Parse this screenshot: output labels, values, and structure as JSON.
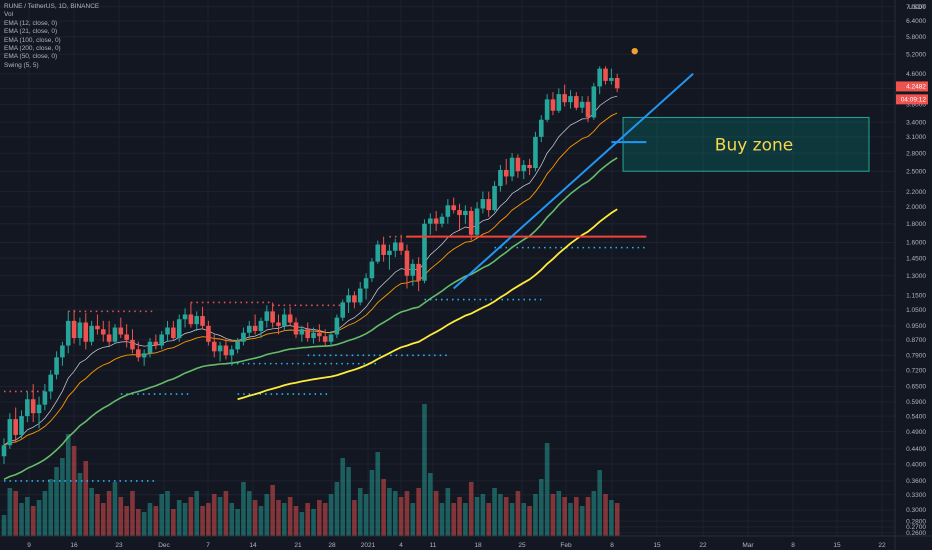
{
  "header": {
    "symbol_line": "RUNE / TetherUS, 1D, BINANCE",
    "indicators": [
      "Vol",
      "EMA (12, close, 0)",
      "EMA (21, close, 0)",
      "EMA (100, close, 0)",
      "EMA (200, close, 0)",
      "EMA (50, close, 0)",
      "Swing (5, 5)"
    ]
  },
  "colors": {
    "background": "#131722",
    "bull": "#26a69a",
    "bear": "#ef5350",
    "ema_fast": "#d1d4dc",
    "ema_mid": "#ff9800",
    "ema_slow": "#66bb6a",
    "ema_long": "#ffeb3b",
    "trend": "#2196f3",
    "zone_fill": "rgba(0,150,136,0.25)",
    "zone_border": "#26a69a",
    "zone_text": "#f6d64a",
    "swing_high": "#ef5350",
    "swing_low": "#29b6f6"
  },
  "chart_data": {
    "type": "candlestick",
    "scale": "log",
    "y_axis_label_top": "USDT",
    "y_ticks": [
      0.26,
      0.27,
      0.28,
      0.3,
      0.33,
      0.36,
      0.4,
      0.44,
      0.49,
      0.54,
      0.59,
      0.65,
      0.72,
      0.79,
      0.87,
      0.95,
      1.05,
      1.15,
      1.3,
      1.45,
      1.6,
      1.8,
      2.0,
      2.2,
      2.5,
      2.8,
      3.1,
      3.4,
      3.8,
      4.2,
      4.6,
      5.2,
      5.8,
      6.4,
      7.0
    ],
    "y_tick_labels": [
      "0.2600",
      "0.2700",
      "0.2800",
      "0.3000",
      "0.3300",
      "0.3600",
      "0.4000",
      "0.4400",
      "0.4900",
      "0.5400",
      "0.5900",
      "0.6500",
      "0.7200",
      "0.7900",
      "0.8700",
      "0.9500",
      "1.0500",
      "1.1500",
      "1.3000",
      "1.4500",
      "1.6000",
      "1.8000",
      "2.0000",
      "2.2000",
      "2.5000",
      "2.8000",
      "3.1000",
      "3.4000",
      "3.8000",
      "4.2000",
      "4.6000",
      "5.2000",
      "5.8000",
      "6.4000",
      "7.0000"
    ],
    "x_ticks": [
      "9",
      "16",
      "23",
      "Dec",
      "7",
      "14",
      "21",
      "28",
      "2021",
      "4",
      "11",
      "18",
      "25",
      "Feb",
      "8",
      "15",
      "22",
      "Mar",
      "8",
      "15",
      "22"
    ],
    "ohlc": [
      [
        0.42,
        0.47,
        0.4,
        0.45
      ],
      [
        0.45,
        0.55,
        0.44,
        0.53
      ],
      [
        0.53,
        0.57,
        0.46,
        0.48
      ],
      [
        0.48,
        0.56,
        0.47,
        0.54
      ],
      [
        0.54,
        0.63,
        0.52,
        0.6
      ],
      [
        0.6,
        0.66,
        0.52,
        0.55
      ],
      [
        0.55,
        0.61,
        0.5,
        0.58
      ],
      [
        0.58,
        0.66,
        0.56,
        0.63
      ],
      [
        0.63,
        0.72,
        0.6,
        0.7
      ],
      [
        0.7,
        0.81,
        0.68,
        0.78
      ],
      [
        0.78,
        0.86,
        0.74,
        0.84
      ],
      [
        0.84,
        1.04,
        0.8,
        0.98
      ],
      [
        0.98,
        1.05,
        0.85,
        0.88
      ],
      [
        0.88,
        1.0,
        0.84,
        0.97
      ],
      [
        0.97,
        1.03,
        0.82,
        0.86
      ],
      [
        0.86,
        0.98,
        0.84,
        0.95
      ],
      [
        0.95,
        1.02,
        0.9,
        0.93
      ],
      [
        0.93,
        0.98,
        0.86,
        0.9
      ],
      [
        0.9,
        0.98,
        0.84,
        0.86
      ],
      [
        0.86,
        0.96,
        0.85,
        0.94
      ],
      [
        0.94,
        1.0,
        0.88,
        0.9
      ],
      [
        0.9,
        0.96,
        0.83,
        0.87
      ],
      [
        0.87,
        0.93,
        0.8,
        0.82
      ],
      [
        0.82,
        0.86,
        0.76,
        0.78
      ],
      [
        0.78,
        0.82,
        0.74,
        0.8
      ],
      [
        0.8,
        0.88,
        0.78,
        0.86
      ],
      [
        0.86,
        0.9,
        0.82,
        0.84
      ],
      [
        0.84,
        0.92,
        0.82,
        0.9
      ],
      [
        0.9,
        0.98,
        0.86,
        0.94
      ],
      [
        0.94,
        0.98,
        0.87,
        0.88
      ],
      [
        0.88,
        1.02,
        0.86,
        0.99
      ],
      [
        0.99,
        1.06,
        0.94,
        1.02
      ],
      [
        1.02,
        1.1,
        0.94,
        0.96
      ],
      [
        0.96,
        1.04,
        0.92,
        1.01
      ],
      [
        1.01,
        1.07,
        0.93,
        0.95
      ],
      [
        0.95,
        0.98,
        0.84,
        0.86
      ],
      [
        0.86,
        0.9,
        0.78,
        0.81
      ],
      [
        0.81,
        0.86,
        0.76,
        0.84
      ],
      [
        0.84,
        0.88,
        0.77,
        0.79
      ],
      [
        0.79,
        0.84,
        0.74,
        0.82
      ],
      [
        0.82,
        0.88,
        0.8,
        0.86
      ],
      [
        0.86,
        0.94,
        0.84,
        0.91
      ],
      [
        0.91,
        0.98,
        0.88,
        0.95
      ],
      [
        0.95,
        1.02,
        0.9,
        0.92
      ],
      [
        0.92,
        1.0,
        0.88,
        0.98
      ],
      [
        0.98,
        1.08,
        0.94,
        1.04
      ],
      [
        1.04,
        1.1,
        0.94,
        0.97
      ],
      [
        0.97,
        1.02,
        0.9,
        0.95
      ],
      [
        0.95,
        1.06,
        0.92,
        1.02
      ],
      [
        1.02,
        1.07,
        0.95,
        0.97
      ],
      [
        0.97,
        1.0,
        0.88,
        0.9
      ],
      [
        0.9,
        0.95,
        0.86,
        0.93
      ],
      [
        0.93,
        0.97,
        0.86,
        0.88
      ],
      [
        0.88,
        0.94,
        0.85,
        0.91
      ],
      [
        0.91,
        0.96,
        0.86,
        0.89
      ],
      [
        0.89,
        0.93,
        0.84,
        0.86
      ],
      [
        0.86,
        0.92,
        0.84,
        0.9
      ],
      [
        0.9,
        1.02,
        0.88,
        1.0
      ],
      [
        1.0,
        1.12,
        0.98,
        1.1
      ],
      [
        1.1,
        1.2,
        1.03,
        1.15
      ],
      [
        1.15,
        1.18,
        1.06,
        1.1
      ],
      [
        1.1,
        1.25,
        1.08,
        1.2
      ],
      [
        1.2,
        1.32,
        1.12,
        1.28
      ],
      [
        1.28,
        1.45,
        1.25,
        1.42
      ],
      [
        1.42,
        1.62,
        1.4,
        1.58
      ],
      [
        1.58,
        1.66,
        1.42,
        1.48
      ],
      [
        1.48,
        1.58,
        1.35,
        1.52
      ],
      [
        1.52,
        1.64,
        1.46,
        1.6
      ],
      [
        1.6,
        1.68,
        1.48,
        1.52
      ],
      [
        1.52,
        1.58,
        1.2,
        1.3
      ],
      [
        1.3,
        1.44,
        1.22,
        1.4
      ],
      [
        1.4,
        1.46,
        1.18,
        1.26
      ],
      [
        1.26,
        1.85,
        1.24,
        1.8
      ],
      [
        1.8,
        1.92,
        1.68,
        1.86
      ],
      [
        1.86,
        1.95,
        1.72,
        1.8
      ],
      [
        1.8,
        1.92,
        1.76,
        1.88
      ],
      [
        1.88,
        2.1,
        1.8,
        2.02
      ],
      [
        2.02,
        2.12,
        1.92,
        1.96
      ],
      [
        1.96,
        2.04,
        1.72,
        1.9
      ],
      [
        1.9,
        2.02,
        1.8,
        1.95
      ],
      [
        1.95,
        2.0,
        1.62,
        1.68
      ],
      [
        1.68,
        2.06,
        1.66,
        1.98
      ],
      [
        1.98,
        2.2,
        1.92,
        2.1
      ],
      [
        2.1,
        2.2,
        1.88,
        1.96
      ],
      [
        1.96,
        2.35,
        1.94,
        2.28
      ],
      [
        2.28,
        2.6,
        2.2,
        2.52
      ],
      [
        2.52,
        2.7,
        2.3,
        2.42
      ],
      [
        2.42,
        2.8,
        2.35,
        2.72
      ],
      [
        2.72,
        2.78,
        2.4,
        2.5
      ],
      [
        2.5,
        2.68,
        2.38,
        2.6
      ],
      [
        2.6,
        2.7,
        2.44,
        2.55
      ],
      [
        2.55,
        3.2,
        2.5,
        3.1
      ],
      [
        3.1,
        3.55,
        3.0,
        3.45
      ],
      [
        3.45,
        4.05,
        3.4,
        3.92
      ],
      [
        3.92,
        4.1,
        3.55,
        3.65
      ],
      [
        3.65,
        4.2,
        3.6,
        4.05
      ],
      [
        4.05,
        4.3,
        3.75,
        3.85
      ],
      [
        3.85,
        4.15,
        3.7,
        4.0
      ],
      [
        4.0,
        4.1,
        3.66,
        3.72
      ],
      [
        3.72,
        4.0,
        3.6,
        3.86
      ],
      [
        3.86,
        4.0,
        3.4,
        3.5
      ],
      [
        3.5,
        4.35,
        3.45,
        4.25
      ],
      [
        4.25,
        4.82,
        4.05,
        4.75
      ],
      [
        4.75,
        4.82,
        4.3,
        4.4
      ],
      [
        4.4,
        4.75,
        4.3,
        4.48
      ],
      [
        4.48,
        4.6,
        4.1,
        4.2
      ]
    ],
    "volume": [
      0.14,
      0.32,
      0.3,
      0.22,
      0.26,
      0.2,
      0.24,
      0.3,
      0.38,
      0.46,
      0.52,
      0.68,
      0.6,
      0.42,
      0.5,
      0.32,
      0.28,
      0.22,
      0.3,
      0.36,
      0.26,
      0.2,
      0.3,
      0.18,
      0.16,
      0.22,
      0.2,
      0.28,
      0.3,
      0.18,
      0.24,
      0.22,
      0.26,
      0.3,
      0.2,
      0.22,
      0.28,
      0.26,
      0.3,
      0.22,
      0.18,
      0.36,
      0.3,
      0.24,
      0.2,
      0.28,
      0.34,
      0.24,
      0.22,
      0.26,
      0.2,
      0.16,
      0.22,
      0.18,
      0.24,
      0.22,
      0.28,
      0.36,
      0.52,
      0.46,
      0.24,
      0.32,
      0.28,
      0.44,
      0.56,
      0.38,
      0.32,
      0.3,
      0.26,
      0.3,
      0.22,
      0.32,
      0.88,
      0.42,
      0.3,
      0.22,
      0.32,
      0.22,
      0.26,
      0.22,
      0.36,
      0.26,
      0.28,
      0.22,
      0.32,
      0.28,
      0.26,
      0.22,
      0.3,
      0.22,
      0.2,
      0.28,
      0.38,
      0.62,
      0.28,
      0.3,
      0.26,
      0.22,
      0.26,
      0.2,
      0.26,
      0.3,
      0.44,
      0.28,
      0.24,
      0.22
    ],
    "ema_12": "computed",
    "swing_highs": [
      {
        "y": 0.63,
        "from": 0,
        "to": 7
      },
      {
        "y": 1.04,
        "from": 11,
        "to": 26
      },
      {
        "y": 1.1,
        "from": 32,
        "to": 46
      },
      {
        "y": 1.08,
        "from": 46,
        "to": 58
      },
      {
        "y": 1.66,
        "from": 66,
        "to": 110
      }
    ],
    "swing_lows": [
      {
        "y": 0.36,
        "from": 0,
        "to": 26
      },
      {
        "y": 0.62,
        "from": 20,
        "to": 32
      },
      {
        "y": 0.62,
        "from": 40,
        "to": 56
      },
      {
        "y": 0.75,
        "from": 38,
        "to": 64
      },
      {
        "y": 0.79,
        "from": 52,
        "to": 76
      },
      {
        "y": 1.12,
        "from": 72,
        "to": 92
      },
      {
        "y": 1.55,
        "from": 84,
        "to": 110
      }
    ],
    "annotations": {
      "buy_zone": {
        "label": "Buy zone",
        "low": 2.5,
        "high": 3.5,
        "from": 106,
        "to": 148
      },
      "resistance": {
        "y": 1.66,
        "from": 69,
        "to": 110
      },
      "trendline": {
        "from": [
          77,
          1.2
        ],
        "to": [
          118,
          4.6
        ]
      },
      "buy_zone_marker": {
        "y": 3.0,
        "from": 104,
        "to": 110
      },
      "dot": {
        "x": 108,
        "y": 5.3
      }
    },
    "price_labels": {
      "last": "4.2482",
      "countdown": "04:09:12"
    }
  }
}
